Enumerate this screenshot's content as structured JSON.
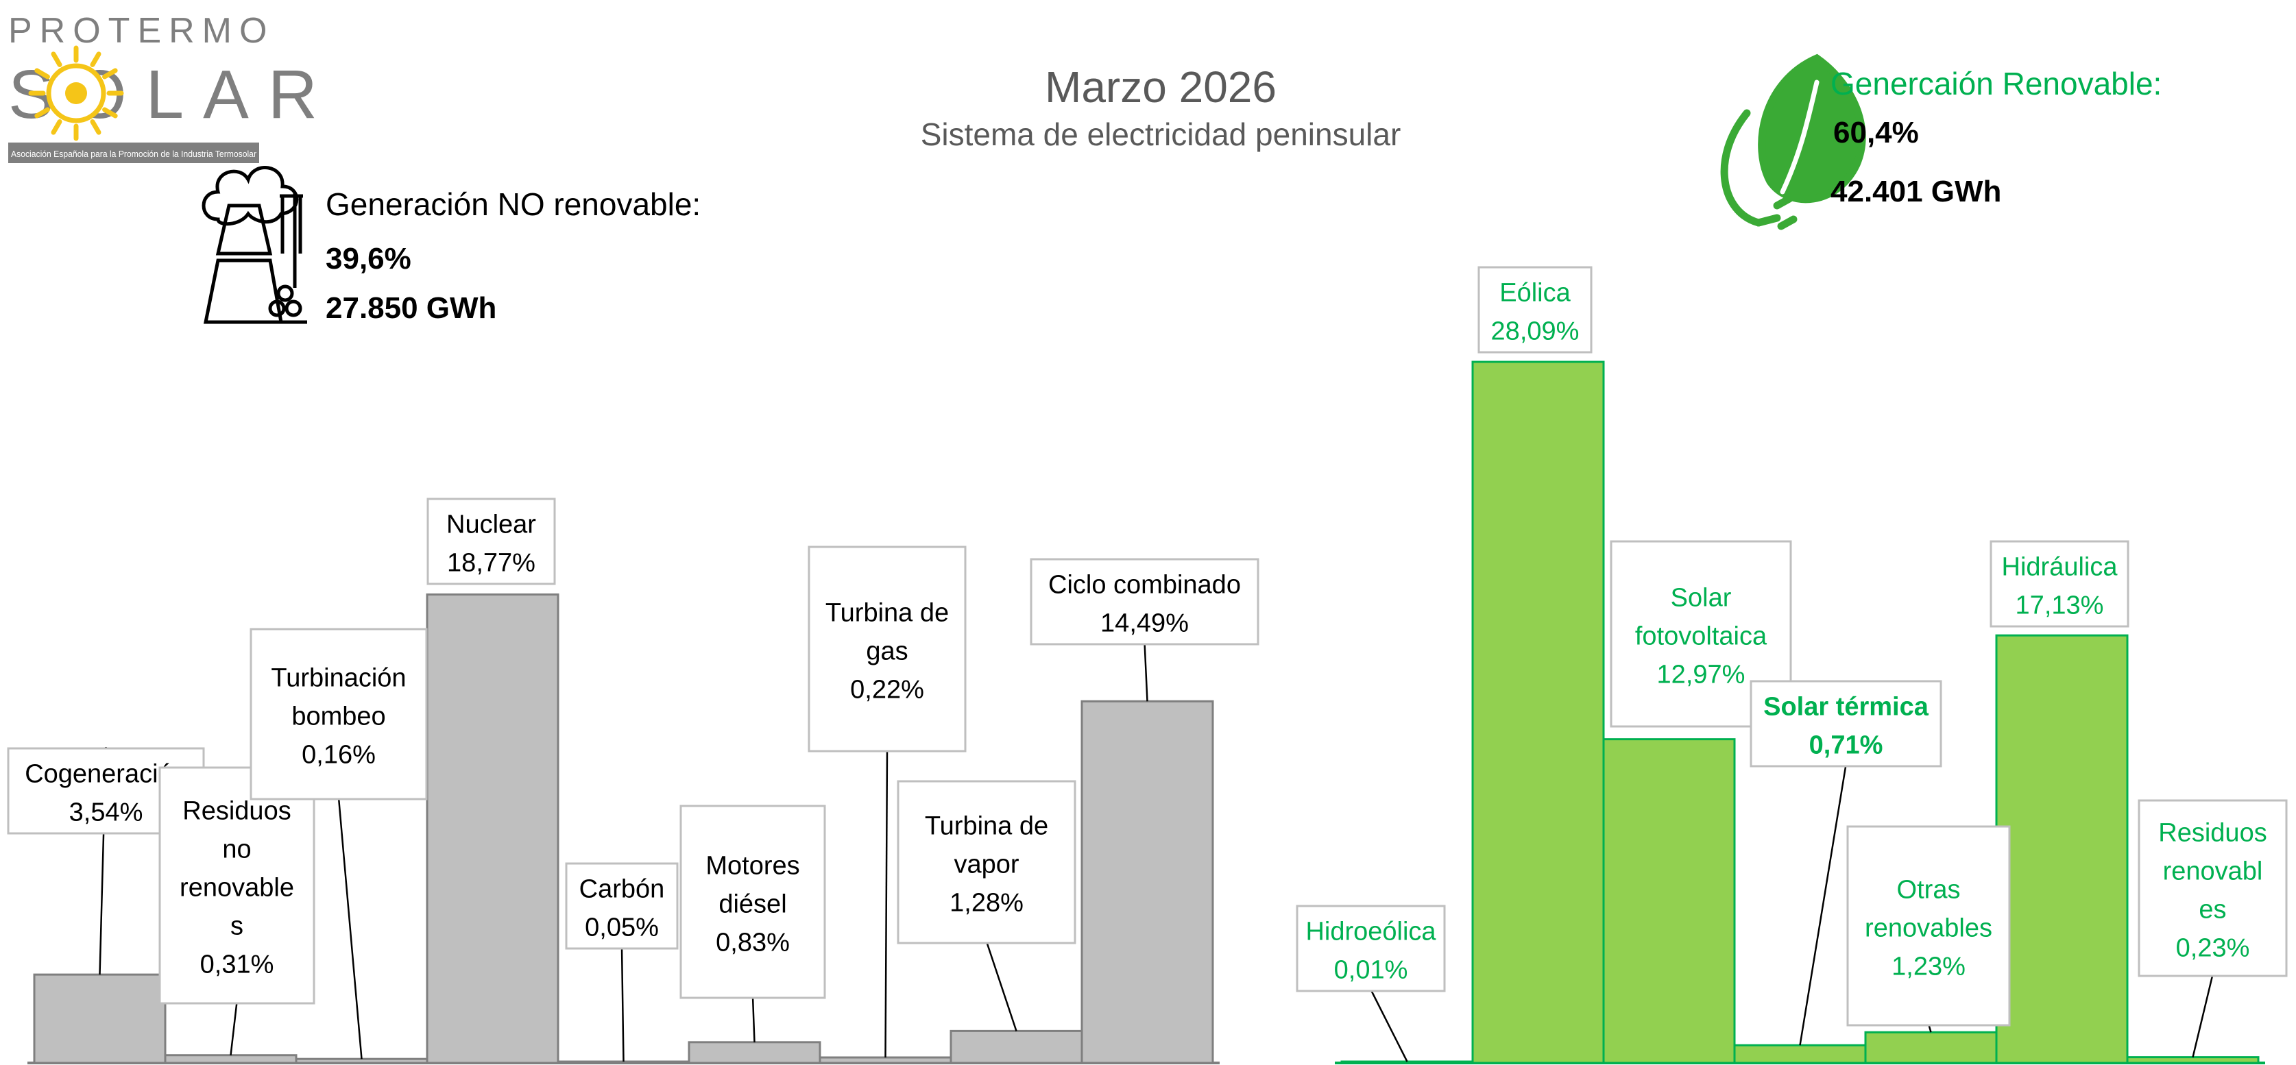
{
  "logo": {
    "line1": "PROTERMO",
    "line2": "SOLAR",
    "tagline": "Asociación Española para la Promoción de la Industria Termosolar",
    "sun_color": "#f5c518"
  },
  "header": {
    "title": "Marzo 2026",
    "subtitle": "Sistema de electricidad peninsular"
  },
  "non_renewable": {
    "label": "Generación NO renovable:",
    "percent": "39,6%",
    "energy": "27.850 GWh",
    "icon": "factory-coal-icon"
  },
  "renewable": {
    "label": "Genercaión Renovable:",
    "percent": "60,4%",
    "energy": "42.401 GWh",
    "icon": "leaf-plug-icon",
    "color": "#00b050"
  },
  "chart_data": [
    {
      "type": "bar",
      "group": "non_renewable",
      "bar_color": "#bfbfbf",
      "categories": [
        "Cogeneración",
        "Residuos no renovables",
        "Turbinación bombeo",
        "Nuclear",
        "Carbón",
        "Motores diésel",
        "Turbina de gas",
        "Turbina de vapor",
        "Ciclo combinado"
      ],
      "values": [
        3.54,
        0.31,
        0.16,
        18.77,
        0.05,
        0.83,
        0.22,
        1.28,
        14.49
      ],
      "data_labels": [
        {
          "lines": [
            "Cogeneración",
            "3,54%"
          ]
        },
        {
          "lines": [
            "Residuos",
            "no",
            "renovable",
            "s",
            "0,31%"
          ]
        },
        {
          "lines": [
            "Turbinación",
            "bombeo",
            "0,16%"
          ]
        },
        {
          "lines": [
            "Nuclear",
            "18,77%"
          ]
        },
        {
          "lines": [
            "Carbón",
            "0,05%"
          ]
        },
        {
          "lines": [
            "Motores",
            "diésel",
            "0,83%"
          ]
        },
        {
          "lines": [
            "Turbina de",
            "gas",
            "0,22%"
          ]
        },
        {
          "lines": [
            "Turbina de",
            "vapor",
            "1,28%"
          ]
        },
        {
          "lines": [
            "Ciclo combinado",
            "14,49%"
          ]
        }
      ],
      "ylim": [
        0,
        28.09
      ],
      "grid": false,
      "legend": "none"
    },
    {
      "type": "bar",
      "group": "renewable",
      "bar_color": "#92d050",
      "label_color": "#00b050",
      "categories": [
        "Hidroeólica",
        "Eólica",
        "Solar fotovoltaica",
        "Solar térmica",
        "Otras renovables",
        "Hidráulica",
        "Residuos renovables"
      ],
      "values": [
        0.01,
        28.09,
        12.97,
        0.71,
        1.23,
        17.13,
        0.23
      ],
      "data_labels": [
        {
          "lines": [
            "Hidroeólica",
            "0,01%"
          ]
        },
        {
          "lines": [
            "Eólica",
            "28,09%"
          ]
        },
        {
          "lines": [
            "Solar",
            "fotovoltaica",
            "12,97%"
          ]
        },
        {
          "lines": [
            "Solar térmica",
            "0,71%"
          ],
          "bold": true
        },
        {
          "lines": [
            "Otras",
            "renovables",
            "1,23%"
          ]
        },
        {
          "lines": [
            "Hidráulica",
            "17,13%"
          ]
        },
        {
          "lines": [
            "Residuos",
            "renovabl",
            "es",
            "0,23%"
          ]
        }
      ],
      "ylim": [
        0,
        28.09
      ],
      "grid": false,
      "legend": "none"
    }
  ]
}
